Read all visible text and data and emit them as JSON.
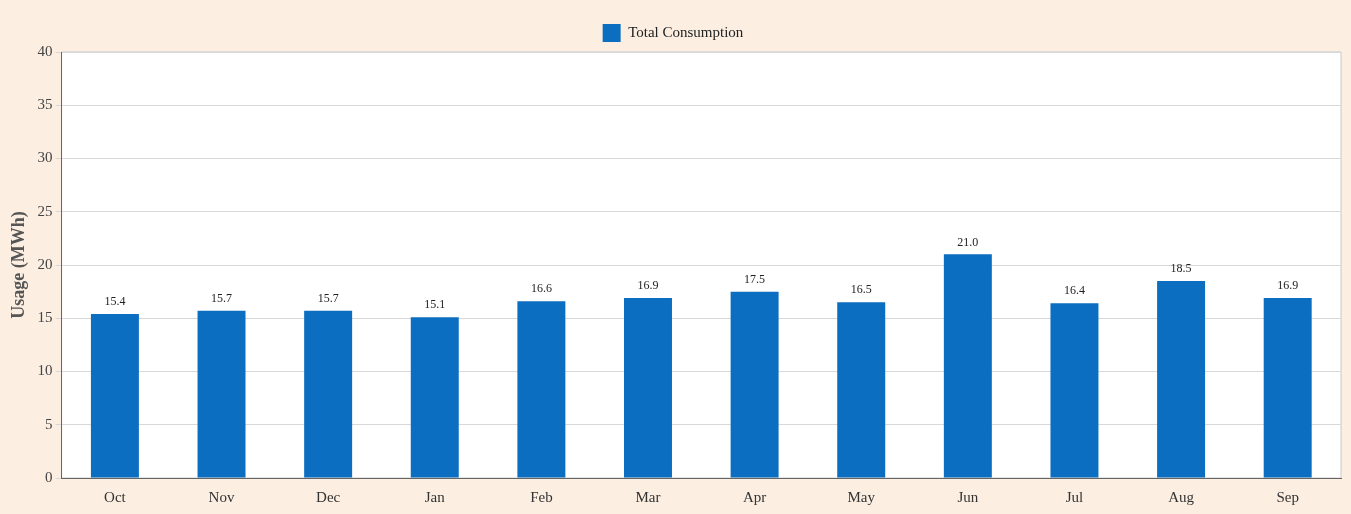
{
  "chart_data": {
    "type": "bar",
    "ylabel": "Usage (MWh)",
    "categories": [
      "Oct",
      "Nov",
      "Dec",
      "Jan",
      "Feb",
      "Mar",
      "Apr",
      "May",
      "Jun",
      "Jul",
      "Aug",
      "Sep"
    ],
    "series": [
      {
        "name": "Total Consumption",
        "color": "#0b6ec0",
        "values": [
          15.4,
          15.7,
          15.7,
          15.1,
          16.6,
          16.9,
          17.5,
          16.5,
          21.0,
          16.4,
          18.5,
          16.9
        ],
        "value_labels": [
          "15.4",
          "15.7",
          "15.7",
          "15.1",
          "16.6",
          "16.9",
          "17.5",
          "16.5",
          "21.0",
          "16.4",
          "18.5",
          "16.9"
        ]
      }
    ],
    "ylim": [
      0,
      40
    ],
    "yticks": [
      0,
      5,
      10,
      15,
      20,
      25,
      30,
      35,
      40
    ],
    "grid": "y",
    "legend": "top"
  }
}
